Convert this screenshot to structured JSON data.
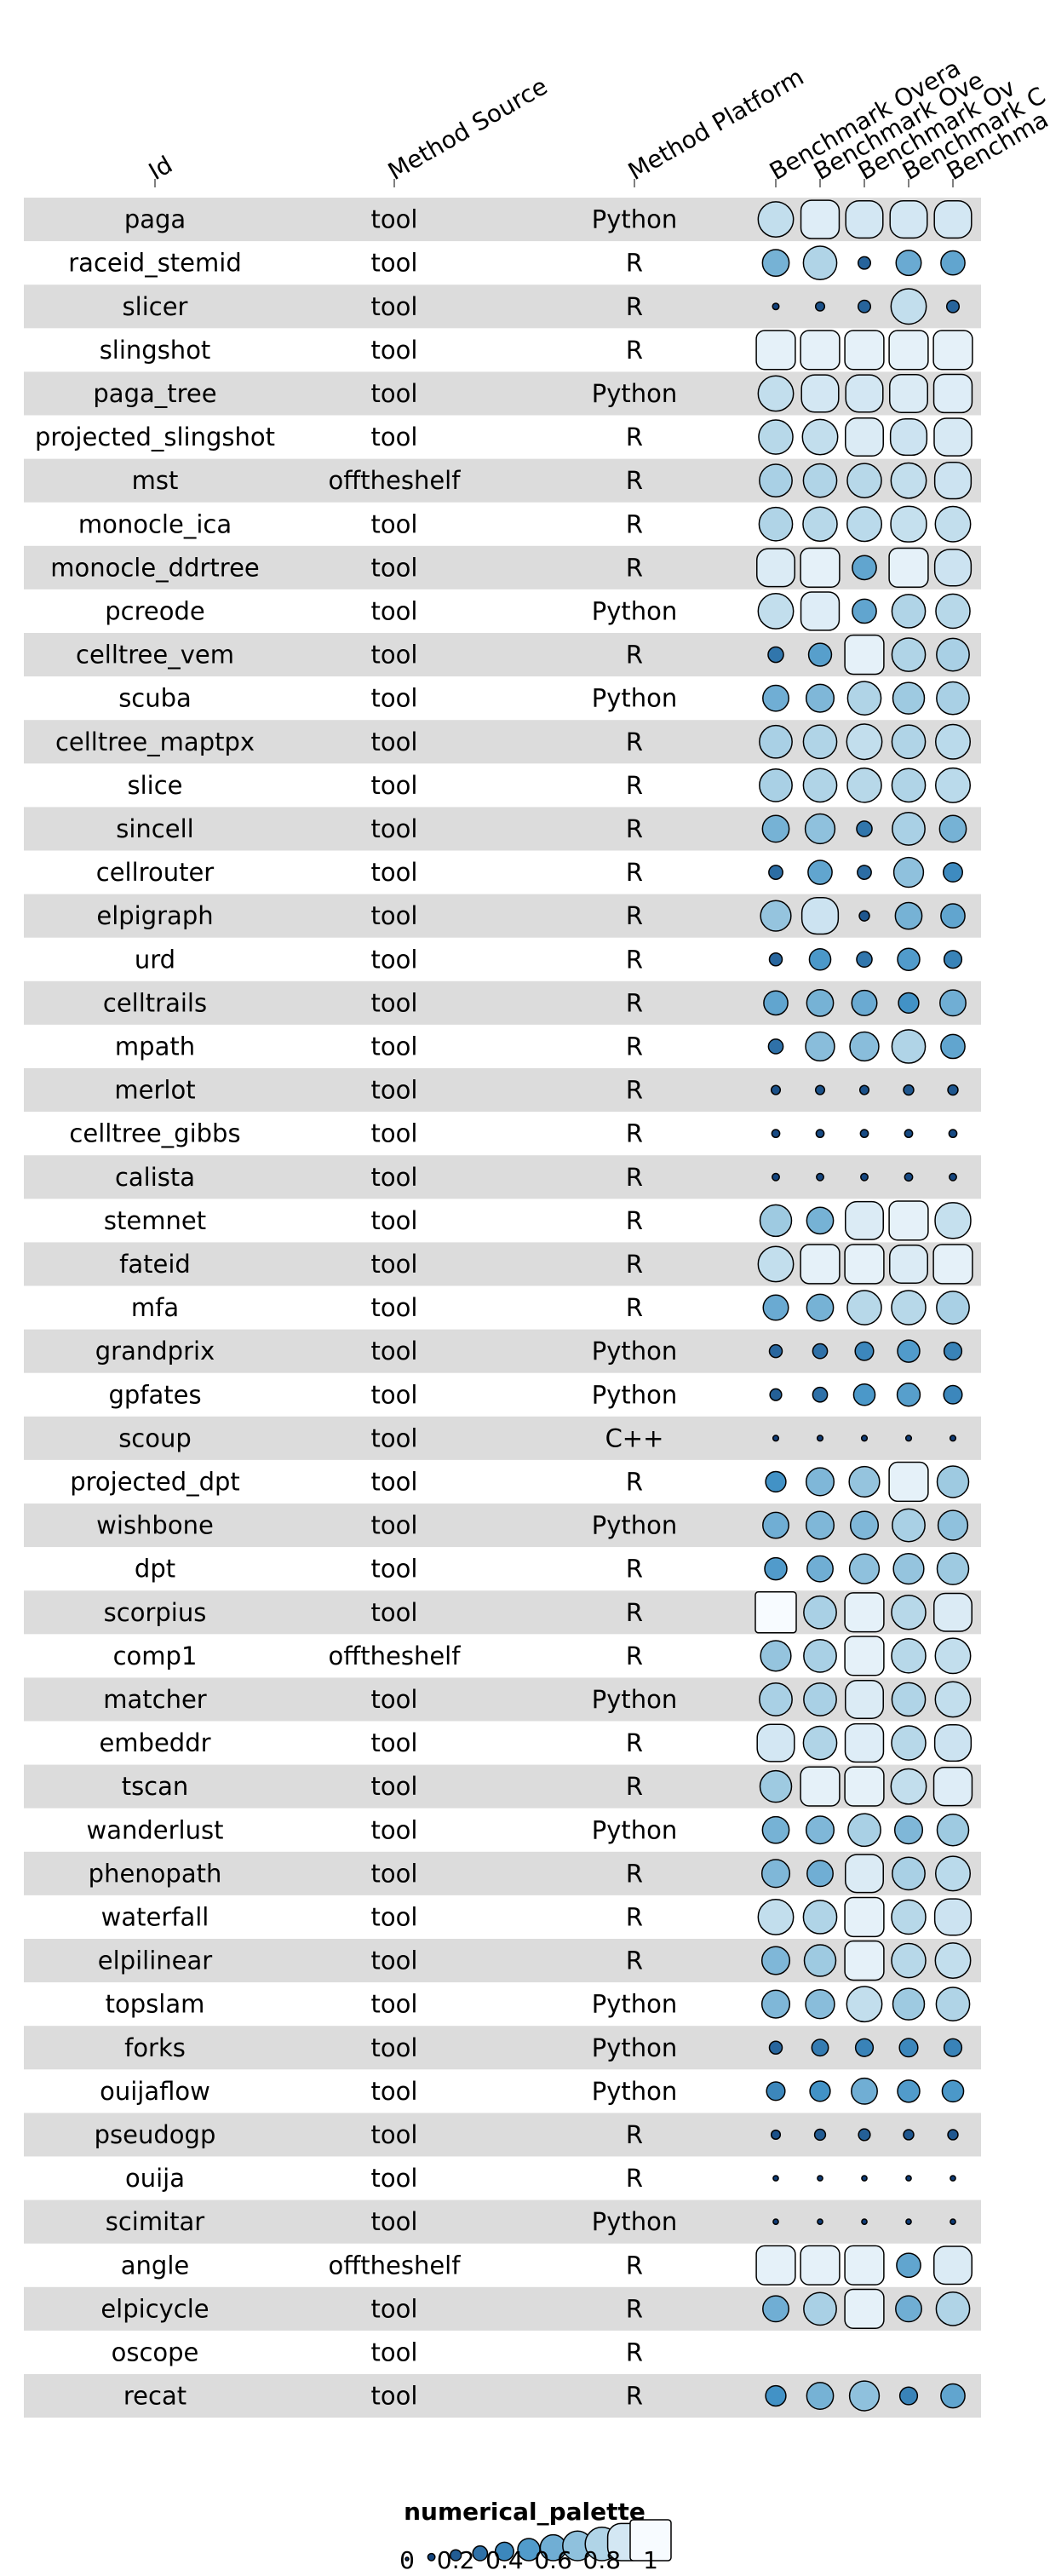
{
  "chart_data": {
    "type": "table",
    "title": "",
    "columns": [
      "Id",
      "Method Source",
      "Method Platform",
      "Benchmark Overall",
      "Benchmark Overall",
      "Benchmark Overall",
      "Benchmark Overall",
      "Benchmark Overall"
    ],
    "column_header_visible": [
      "Id",
      "Method Source",
      "Method Platform",
      "Benchmark Overa",
      "Benchmark Ove",
      "Benchmark Ov",
      "Benchmark C",
      "Benchma"
    ],
    "score_columns": 5,
    "rows": [
      {
        "id": "paga",
        "source": "tool",
        "platform": "Python",
        "scores": [
          0.85,
          0.93,
          0.9,
          0.9,
          0.9
        ]
      },
      {
        "id": "raceid_stemid",
        "source": "tool",
        "platform": "R",
        "scores": [
          0.62,
          0.8,
          0.24,
          0.58,
          0.55
        ]
      },
      {
        "id": "slicer",
        "source": "tool",
        "platform": "R",
        "scores": [
          0.08,
          0.15,
          0.24,
          0.85,
          0.24
        ]
      },
      {
        "id": "slingshot",
        "source": "tool",
        "platform": "R",
        "scores": [
          0.95,
          0.95,
          0.95,
          0.95,
          0.95
        ]
      },
      {
        "id": "paga_tree",
        "source": "tool",
        "platform": "Python",
        "scores": [
          0.85,
          0.9,
          0.9,
          0.92,
          0.93
        ]
      },
      {
        "id": "projected_slingshot",
        "source": "tool",
        "platform": "R",
        "scores": [
          0.82,
          0.85,
          0.92,
          0.88,
          0.91
        ]
      },
      {
        "id": "mst",
        "source": "offtheshelf",
        "platform": "R",
        "scores": [
          0.78,
          0.8,
          0.82,
          0.85,
          0.88
        ]
      },
      {
        "id": "monocle_ica",
        "source": "tool",
        "platform": "R",
        "scores": [
          0.8,
          0.82,
          0.83,
          0.86,
          0.85
        ]
      },
      {
        "id": "monocle_ddrtree",
        "source": "tool",
        "platform": "R",
        "scores": [
          0.92,
          0.95,
          0.55,
          0.95,
          0.88
        ]
      },
      {
        "id": "pcreode",
        "source": "tool",
        "platform": "Python",
        "scores": [
          0.85,
          0.93,
          0.55,
          0.8,
          0.82
        ]
      },
      {
        "id": "celltree_vem",
        "source": "tool",
        "platform": "R",
        "scores": [
          0.32,
          0.52,
          0.95,
          0.8,
          0.78
        ]
      },
      {
        "id": "scuba",
        "source": "tool",
        "platform": "Python",
        "scores": [
          0.6,
          0.65,
          0.8,
          0.75,
          0.78
        ]
      },
      {
        "id": "celltree_maptpx",
        "source": "tool",
        "platform": "R",
        "scores": [
          0.78,
          0.8,
          0.85,
          0.8,
          0.83
        ]
      },
      {
        "id": "slice",
        "source": "tool",
        "platform": "R",
        "scores": [
          0.78,
          0.8,
          0.82,
          0.8,
          0.83
        ]
      },
      {
        "id": "sincell",
        "source": "tool",
        "platform": "R",
        "scores": [
          0.62,
          0.7,
          0.32,
          0.78,
          0.62
        ]
      },
      {
        "id": "cellrouter",
        "source": "tool",
        "platform": "R",
        "scores": [
          0.28,
          0.55,
          0.28,
          0.7,
          0.42
        ]
      },
      {
        "id": "elpigraph",
        "source": "tool",
        "platform": "R",
        "scores": [
          0.72,
          0.88,
          0.18,
          0.62,
          0.55
        ]
      },
      {
        "id": "urd",
        "source": "tool",
        "platform": "R",
        "scores": [
          0.25,
          0.48,
          0.32,
          0.5,
          0.38
        ]
      },
      {
        "id": "celltrails",
        "source": "tool",
        "platform": "R",
        "scores": [
          0.55,
          0.62,
          0.58,
          0.45,
          0.6
        ]
      },
      {
        "id": "mpath",
        "source": "tool",
        "platform": "R",
        "scores": [
          0.3,
          0.68,
          0.68,
          0.8,
          0.55
        ]
      },
      {
        "id": "merlot",
        "source": "tool",
        "platform": "R",
        "scores": [
          0.15,
          0.15,
          0.15,
          0.18,
          0.18
        ]
      },
      {
        "id": "celltree_gibbs",
        "source": "tool",
        "platform": "R",
        "scores": [
          0.12,
          0.12,
          0.12,
          0.12,
          0.12
        ]
      },
      {
        "id": "calista",
        "source": "tool",
        "platform": "R",
        "scores": [
          0.1,
          0.1,
          0.1,
          0.12,
          0.1
        ]
      },
      {
        "id": "stemnet",
        "source": "tool",
        "platform": "R",
        "scores": [
          0.75,
          0.62,
          0.92,
          0.95,
          0.86
        ]
      },
      {
        "id": "fateid",
        "source": "tool",
        "platform": "R",
        "scores": [
          0.85,
          0.95,
          0.95,
          0.92,
          0.95
        ]
      },
      {
        "id": "mfa",
        "source": "tool",
        "platform": "R",
        "scores": [
          0.58,
          0.62,
          0.82,
          0.82,
          0.78
        ]
      },
      {
        "id": "grandprix",
        "source": "tool",
        "platform": "Python",
        "scores": [
          0.25,
          0.3,
          0.4,
          0.5,
          0.38
        ]
      },
      {
        "id": "gpfates",
        "source": "tool",
        "platform": "Python",
        "scores": [
          0.22,
          0.3,
          0.48,
          0.52,
          0.4
        ]
      },
      {
        "id": "scoup",
        "source": "tool",
        "platform": "C++",
        "scores": [
          0.06,
          0.06,
          0.06,
          0.06,
          0.06
        ]
      },
      {
        "id": "projected_dpt",
        "source": "tool",
        "platform": "R",
        "scores": [
          0.45,
          0.65,
          0.72,
          0.95,
          0.75
        ]
      },
      {
        "id": "wishbone",
        "source": "tool",
        "platform": "Python",
        "scores": [
          0.6,
          0.65,
          0.65,
          0.78,
          0.7
        ]
      },
      {
        "id": "dpt",
        "source": "tool",
        "platform": "R",
        "scores": [
          0.5,
          0.6,
          0.7,
          0.72,
          0.75
        ]
      },
      {
        "id": "scorpius",
        "source": "tool",
        "platform": "R",
        "scores": [
          1.0,
          0.78,
          0.95,
          0.82,
          0.92
        ]
      },
      {
        "id": "comp1",
        "source": "offtheshelf",
        "platform": "R",
        "scores": [
          0.72,
          0.78,
          0.95,
          0.82,
          0.85
        ]
      },
      {
        "id": "matcher",
        "source": "tool",
        "platform": "Python",
        "scores": [
          0.78,
          0.78,
          0.92,
          0.8,
          0.85
        ]
      },
      {
        "id": "embeddr",
        "source": "tool",
        "platform": "R",
        "scores": [
          0.9,
          0.8,
          0.93,
          0.82,
          0.88
        ]
      },
      {
        "id": "tscan",
        "source": "tool",
        "platform": "R",
        "scores": [
          0.75,
          0.95,
          0.95,
          0.85,
          0.93
        ]
      },
      {
        "id": "wanderlust",
        "source": "tool",
        "platform": "Python",
        "scores": [
          0.62,
          0.65,
          0.78,
          0.65,
          0.75
        ]
      },
      {
        "id": "phenopath",
        "source": "tool",
        "platform": "R",
        "scores": [
          0.65,
          0.6,
          0.92,
          0.78,
          0.83
        ]
      },
      {
        "id": "waterfall",
        "source": "tool",
        "platform": "R",
        "scores": [
          0.85,
          0.8,
          0.95,
          0.82,
          0.88
        ]
      },
      {
        "id": "elpilinear",
        "source": "tool",
        "platform": "R",
        "scores": [
          0.65,
          0.75,
          0.95,
          0.82,
          0.85
        ]
      },
      {
        "id": "topslam",
        "source": "tool",
        "platform": "Python",
        "scores": [
          0.65,
          0.68,
          0.85,
          0.75,
          0.8
        ]
      },
      {
        "id": "forks",
        "source": "tool",
        "platform": "Python",
        "scores": [
          0.25,
          0.35,
          0.38,
          0.4,
          0.38
        ]
      },
      {
        "id": "ouijaflow",
        "source": "tool",
        "platform": "Python",
        "scores": [
          0.4,
          0.45,
          0.6,
          0.5,
          0.48
        ]
      },
      {
        "id": "pseudogp",
        "source": "tool",
        "platform": "R",
        "scores": [
          0.15,
          0.2,
          0.22,
          0.18,
          0.18
        ]
      },
      {
        "id": "ouija",
        "source": "tool",
        "platform": "R",
        "scores": [
          0.05,
          0.05,
          0.05,
          0.05,
          0.05
        ]
      },
      {
        "id": "scimitar",
        "source": "tool",
        "platform": "Python",
        "scores": [
          0.05,
          0.05,
          0.05,
          0.05,
          0.05
        ]
      },
      {
        "id": "angle",
        "source": "offtheshelf",
        "platform": "R",
        "scores": [
          0.95,
          0.95,
          0.95,
          0.55,
          0.92
        ]
      },
      {
        "id": "elpicycle",
        "source": "tool",
        "platform": "R",
        "scores": [
          0.6,
          0.78,
          0.95,
          0.6,
          0.8
        ]
      },
      {
        "id": "oscope",
        "source": "tool",
        "platform": "R",
        "scores": [
          null,
          null,
          null,
          null,
          null
        ]
      },
      {
        "id": "recat",
        "source": "tool",
        "platform": "R",
        "scores": [
          0.45,
          0.62,
          0.7,
          0.38,
          0.55
        ]
      }
    ],
    "legend": {
      "title": "numerical_palette",
      "values": [
        0,
        0.1,
        0.2,
        0.3,
        0.4,
        0.5,
        0.6,
        0.7,
        0.8,
        0.9,
        1.0
      ],
      "tick_labels": [
        "0",
        "0.2",
        "0.4",
        "0.6",
        "0.8",
        "1"
      ],
      "placement": "bottom-center"
    },
    "colors": {
      "stripe": "#dcdcdc",
      "low": "#08306b",
      "mid": "#4292c6",
      "light": "#9ecae1",
      "high": "#f7fbff",
      "outline": "#000000"
    }
  }
}
